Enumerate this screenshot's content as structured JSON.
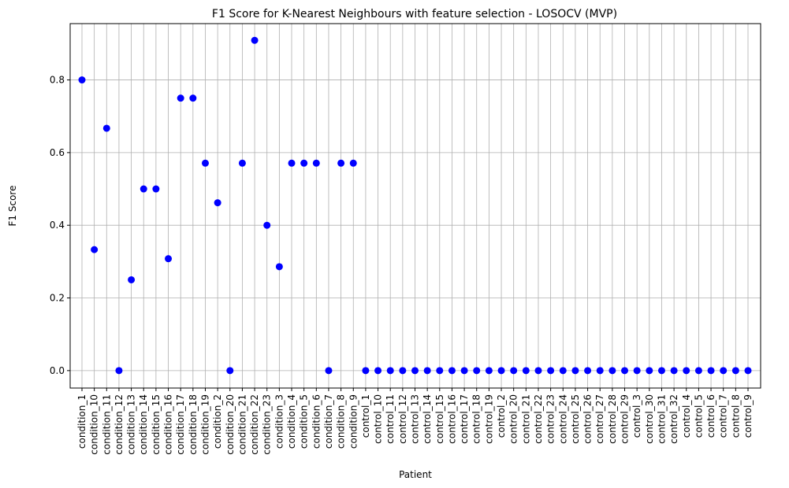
{
  "chart_data": {
    "type": "scatter",
    "title": "F1 Score for K-Nearest Neighbours with feature selection - LOSOCV (MVP)",
    "xlabel": "Patient",
    "ylabel": "F1 Score",
    "ylim": [
      -0.048,
      0.955
    ],
    "yticks": [
      "0.0",
      "0.2",
      "0.4",
      "0.6",
      "0.8"
    ],
    "grid": true,
    "marker_color": "#0000ff",
    "categories": [
      "condition_1",
      "condition_10",
      "condition_11",
      "condition_12",
      "condition_13",
      "condition_14",
      "condition_15",
      "condition_16",
      "condition_17",
      "condition_18",
      "condition_19",
      "condition_2",
      "condition_20",
      "condition_21",
      "condition_22",
      "condition_23",
      "condition_3",
      "condition_4",
      "condition_5",
      "condition_6",
      "condition_7",
      "condition_8",
      "condition_9",
      "control_1",
      "control_10",
      "control_11",
      "control_12",
      "control_13",
      "control_14",
      "control_15",
      "control_16",
      "control_17",
      "control_18",
      "control_19",
      "control_2",
      "control_20",
      "control_21",
      "control_22",
      "control_23",
      "control_24",
      "control_25",
      "control_26",
      "control_27",
      "control_28",
      "control_29",
      "control_3",
      "control_30",
      "control_31",
      "control_32",
      "control_4",
      "control_5",
      "control_6",
      "control_7",
      "control_8",
      "control_9"
    ],
    "values": [
      0.8,
      0.333,
      0.667,
      0.0,
      0.25,
      0.5,
      0.5,
      0.308,
      0.75,
      0.75,
      0.571,
      0.462,
      0.0,
      0.571,
      0.909,
      0.4,
      0.286,
      0.571,
      0.571,
      0.571,
      0.0,
      0.571,
      0.571,
      0,
      0,
      0,
      0,
      0,
      0,
      0,
      0,
      0,
      0,
      0,
      0,
      0,
      0,
      0,
      0,
      0,
      0,
      0,
      0,
      0,
      0,
      0,
      0,
      0,
      0,
      0,
      0,
      0,
      0,
      0,
      0
    ]
  }
}
